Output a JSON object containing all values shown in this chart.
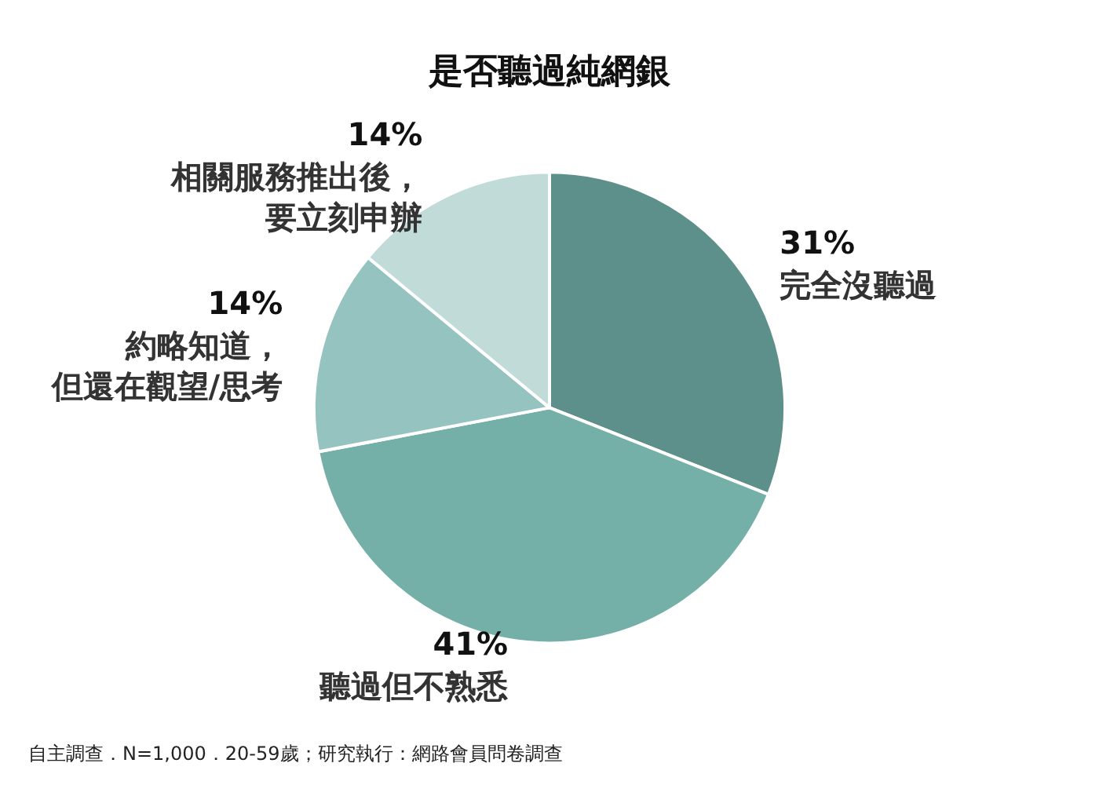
{
  "chart_data": {
    "type": "pie",
    "title": "是否聽過純網銀",
    "categories": [
      "完全沒聽過",
      "聽過但不熟悉",
      "約略知道，但還在觀望/思考",
      "相關服務推出後，要立刻申辦"
    ],
    "values": [
      31,
      41,
      14,
      14
    ],
    "colors": [
      "#5e908b",
      "#74afa8",
      "#95c4c0",
      "#c0dbd8"
    ],
    "value_labels": [
      "31%",
      "41%",
      "14%",
      "14%"
    ],
    "annotations": [
      "自主調查．N=1,000．20-59歲；研究執行：網路會員問卷調查"
    ]
  }
}
